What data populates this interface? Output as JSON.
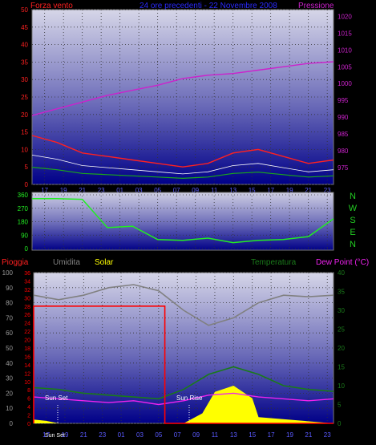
{
  "colors": {
    "wind": "#ff2020",
    "gust_sub": "#ffffff",
    "wind_avg": "#1aa81a",
    "pressure": "#cc22cc",
    "direction": "#22ee22",
    "humidity": "#808080",
    "solar": "#ffff00",
    "temperature": "#1a7a1a",
    "dewpoint": "#ee22ee",
    "rain": "#ff0000",
    "title_blue": "#2a2aff",
    "nwsen": "#22cc22"
  },
  "header": {
    "left_label": "Forza vento",
    "center_label": "24 ore precedenti - 22 Novembre 2008",
    "right_label": "Pressione"
  },
  "panel2": {
    "compass": [
      "N",
      "W",
      "S",
      "E",
      "N"
    ]
  },
  "panel3": {
    "labels": {
      "rain": "Pioggia",
      "humidity": "Umidita",
      "solar": "Solar",
      "temperature": "Temperatura",
      "dewpoint": "Dew Point (°C)"
    },
    "annotations": {
      "sunset": "Sun Set",
      "sunrise": "Sun Rise"
    }
  },
  "chart_data": [
    {
      "type": "line",
      "title": "24 ore precedenti - 22 Novembre 2008",
      "x_ticks": [
        "17",
        "19",
        "21",
        "23",
        "01",
        "03",
        "05",
        "07",
        "09",
        "11",
        "13",
        "15",
        "17",
        "19",
        "21",
        "23"
      ],
      "ylim_left": [
        0,
        50
      ],
      "yticks_left": [
        "0",
        "5",
        "10",
        "15",
        "20",
        "25",
        "30",
        "35",
        "40",
        "45",
        "50"
      ],
      "ylim_right": [
        970,
        1022
      ],
      "yticks_right": [
        "975",
        "980",
        "985",
        "990",
        "995",
        "1000",
        "1005",
        "1010",
        "1015",
        "1020"
      ],
      "series": [
        {
          "name": "Forza vento",
          "x": [
            0,
            2,
            4,
            6,
            8,
            10,
            12,
            14,
            16,
            18,
            20,
            22,
            24
          ],
          "values": [
            14,
            12,
            9,
            8,
            7,
            6,
            5,
            6,
            9,
            10,
            8,
            6,
            7
          ]
        },
        {
          "name": "Pressione",
          "x": [
            0,
            2,
            4,
            6,
            8,
            10,
            12,
            14,
            16,
            18,
            20,
            22,
            24
          ],
          "values": [
            990.5,
            992.5,
            994.5,
            996.5,
            998,
            999.5,
            1001.5,
            1002.5,
            1003,
            1004,
            1005,
            1006,
            1006.5
          ]
        }
      ],
      "grid": true
    },
    {
      "type": "line",
      "series_name": "direction",
      "ylim": [
        0,
        360
      ],
      "yticks": [
        "0",
        "90",
        "180",
        "270",
        "360"
      ],
      "x": [
        0,
        2,
        4,
        6,
        8,
        10,
        12,
        14,
        16,
        18,
        20,
        22,
        24
      ],
      "values": [
        335,
        335,
        330,
        140,
        150,
        60,
        55,
        70,
        40,
        55,
        60,
        80,
        200
      ],
      "grid": true
    },
    {
      "type": "line",
      "ylim_humidity": [
        0,
        100
      ],
      "yticks_humidity": [
        "0",
        "10",
        "20",
        "30",
        "40",
        "50",
        "60",
        "70",
        "80",
        "90",
        "100"
      ],
      "ylim_rain": [
        0,
        36
      ],
      "yticks_rain": [
        "0",
        "2",
        "4",
        "6",
        "8",
        "10",
        "12",
        "14",
        "16",
        "18",
        "20",
        "22",
        "24",
        "26",
        "28",
        "30",
        "32",
        "34",
        "36"
      ],
      "ylim_temp": [
        0,
        40
      ],
      "yticks_temp": [
        "0",
        "5",
        "10",
        "15",
        "20",
        "25",
        "30",
        "35",
        "40"
      ],
      "x_ticks": [
        "Sun Set",
        "17",
        "19",
        "21",
        "23",
        "01",
        "03",
        "05",
        "07",
        "09",
        "11",
        "13",
        "15",
        "17",
        "19",
        "21",
        "23"
      ],
      "series": [
        {
          "name": "Umidita",
          "x": [
            0,
            2,
            4,
            6,
            8,
            10,
            12,
            14,
            16,
            18,
            20,
            22,
            24
          ],
          "values": [
            85,
            82,
            85,
            90,
            92,
            88,
            75,
            65,
            70,
            80,
            85,
            84,
            85
          ]
        },
        {
          "name": "Temperatura",
          "x": [
            0,
            2,
            4,
            6,
            8,
            10,
            12,
            14,
            16,
            18,
            20,
            22,
            24
          ],
          "values": [
            9.5,
            9,
            8,
            7.5,
            7,
            6.5,
            9,
            13,
            15,
            13,
            10,
            9,
            8.5
          ]
        },
        {
          "name": "Dew Point (°C)",
          "x": [
            0,
            2,
            4,
            6,
            8,
            10,
            12,
            14,
            16,
            18,
            20,
            22,
            24
          ],
          "values": [
            7,
            6.5,
            6,
            5.5,
            6,
            5,
            6,
            7.5,
            8,
            7,
            6.5,
            6,
            6.5
          ]
        },
        {
          "name": "Pioggia",
          "x": [
            0,
            0,
            10.5,
            10.5,
            24
          ],
          "values": [
            0,
            28,
            28,
            0,
            0
          ]
        },
        {
          "name": "Solar",
          "x": [
            0,
            1,
            2,
            4,
            9,
            10,
            12,
            13.5,
            14.5,
            16,
            17.5,
            18,
            24
          ],
          "values": [
            3,
            2,
            0,
            0,
            0,
            0,
            0,
            8,
            25,
            30,
            20,
            5,
            0
          ]
        }
      ],
      "grid": true
    }
  ]
}
